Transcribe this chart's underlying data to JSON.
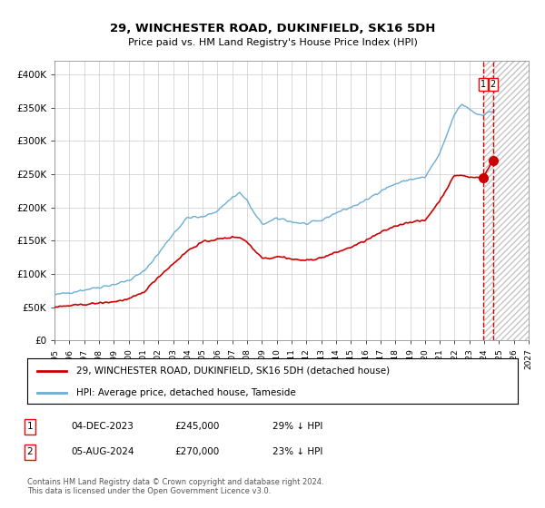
{
  "title": "29, WINCHESTER ROAD, DUKINFIELD, SK16 5DH",
  "subtitle": "Price paid vs. HM Land Registry's House Price Index (HPI)",
  "legend_line1": "29, WINCHESTER ROAD, DUKINFIELD, SK16 5DH (detached house)",
  "legend_line2": "HPI: Average price, detached house, Tameside",
  "table_rows": [
    {
      "num": "1",
      "date": "04-DEC-2023",
      "price": "£245,000",
      "hpi": "29% ↓ HPI"
    },
    {
      "num": "2",
      "date": "05-AUG-2024",
      "price": "£270,000",
      "hpi": "23% ↓ HPI"
    }
  ],
  "footer": "Contains HM Land Registry data © Crown copyright and database right 2024.\nThis data is licensed under the Open Government Licence v3.0.",
  "hpi_color": "#6baed6",
  "price_color": "#cc0000",
  "point1_year": 2023.92,
  "point1_value": 245000,
  "point2_year": 2024.59,
  "point2_value": 270000,
  "ylim": [
    0,
    420000
  ],
  "xlim_start": 1995,
  "xlim_end": 2027,
  "ytick_labels": [
    "£0",
    "£50K",
    "£100K",
    "£150K",
    "£200K",
    "£250K",
    "£300K",
    "£350K",
    "£400K"
  ],
  "ytick_values": [
    0,
    50000,
    100000,
    150000,
    200000,
    250000,
    300000,
    350000,
    400000
  ],
  "background_color": "#ffffff",
  "grid_color": "#cccccc"
}
